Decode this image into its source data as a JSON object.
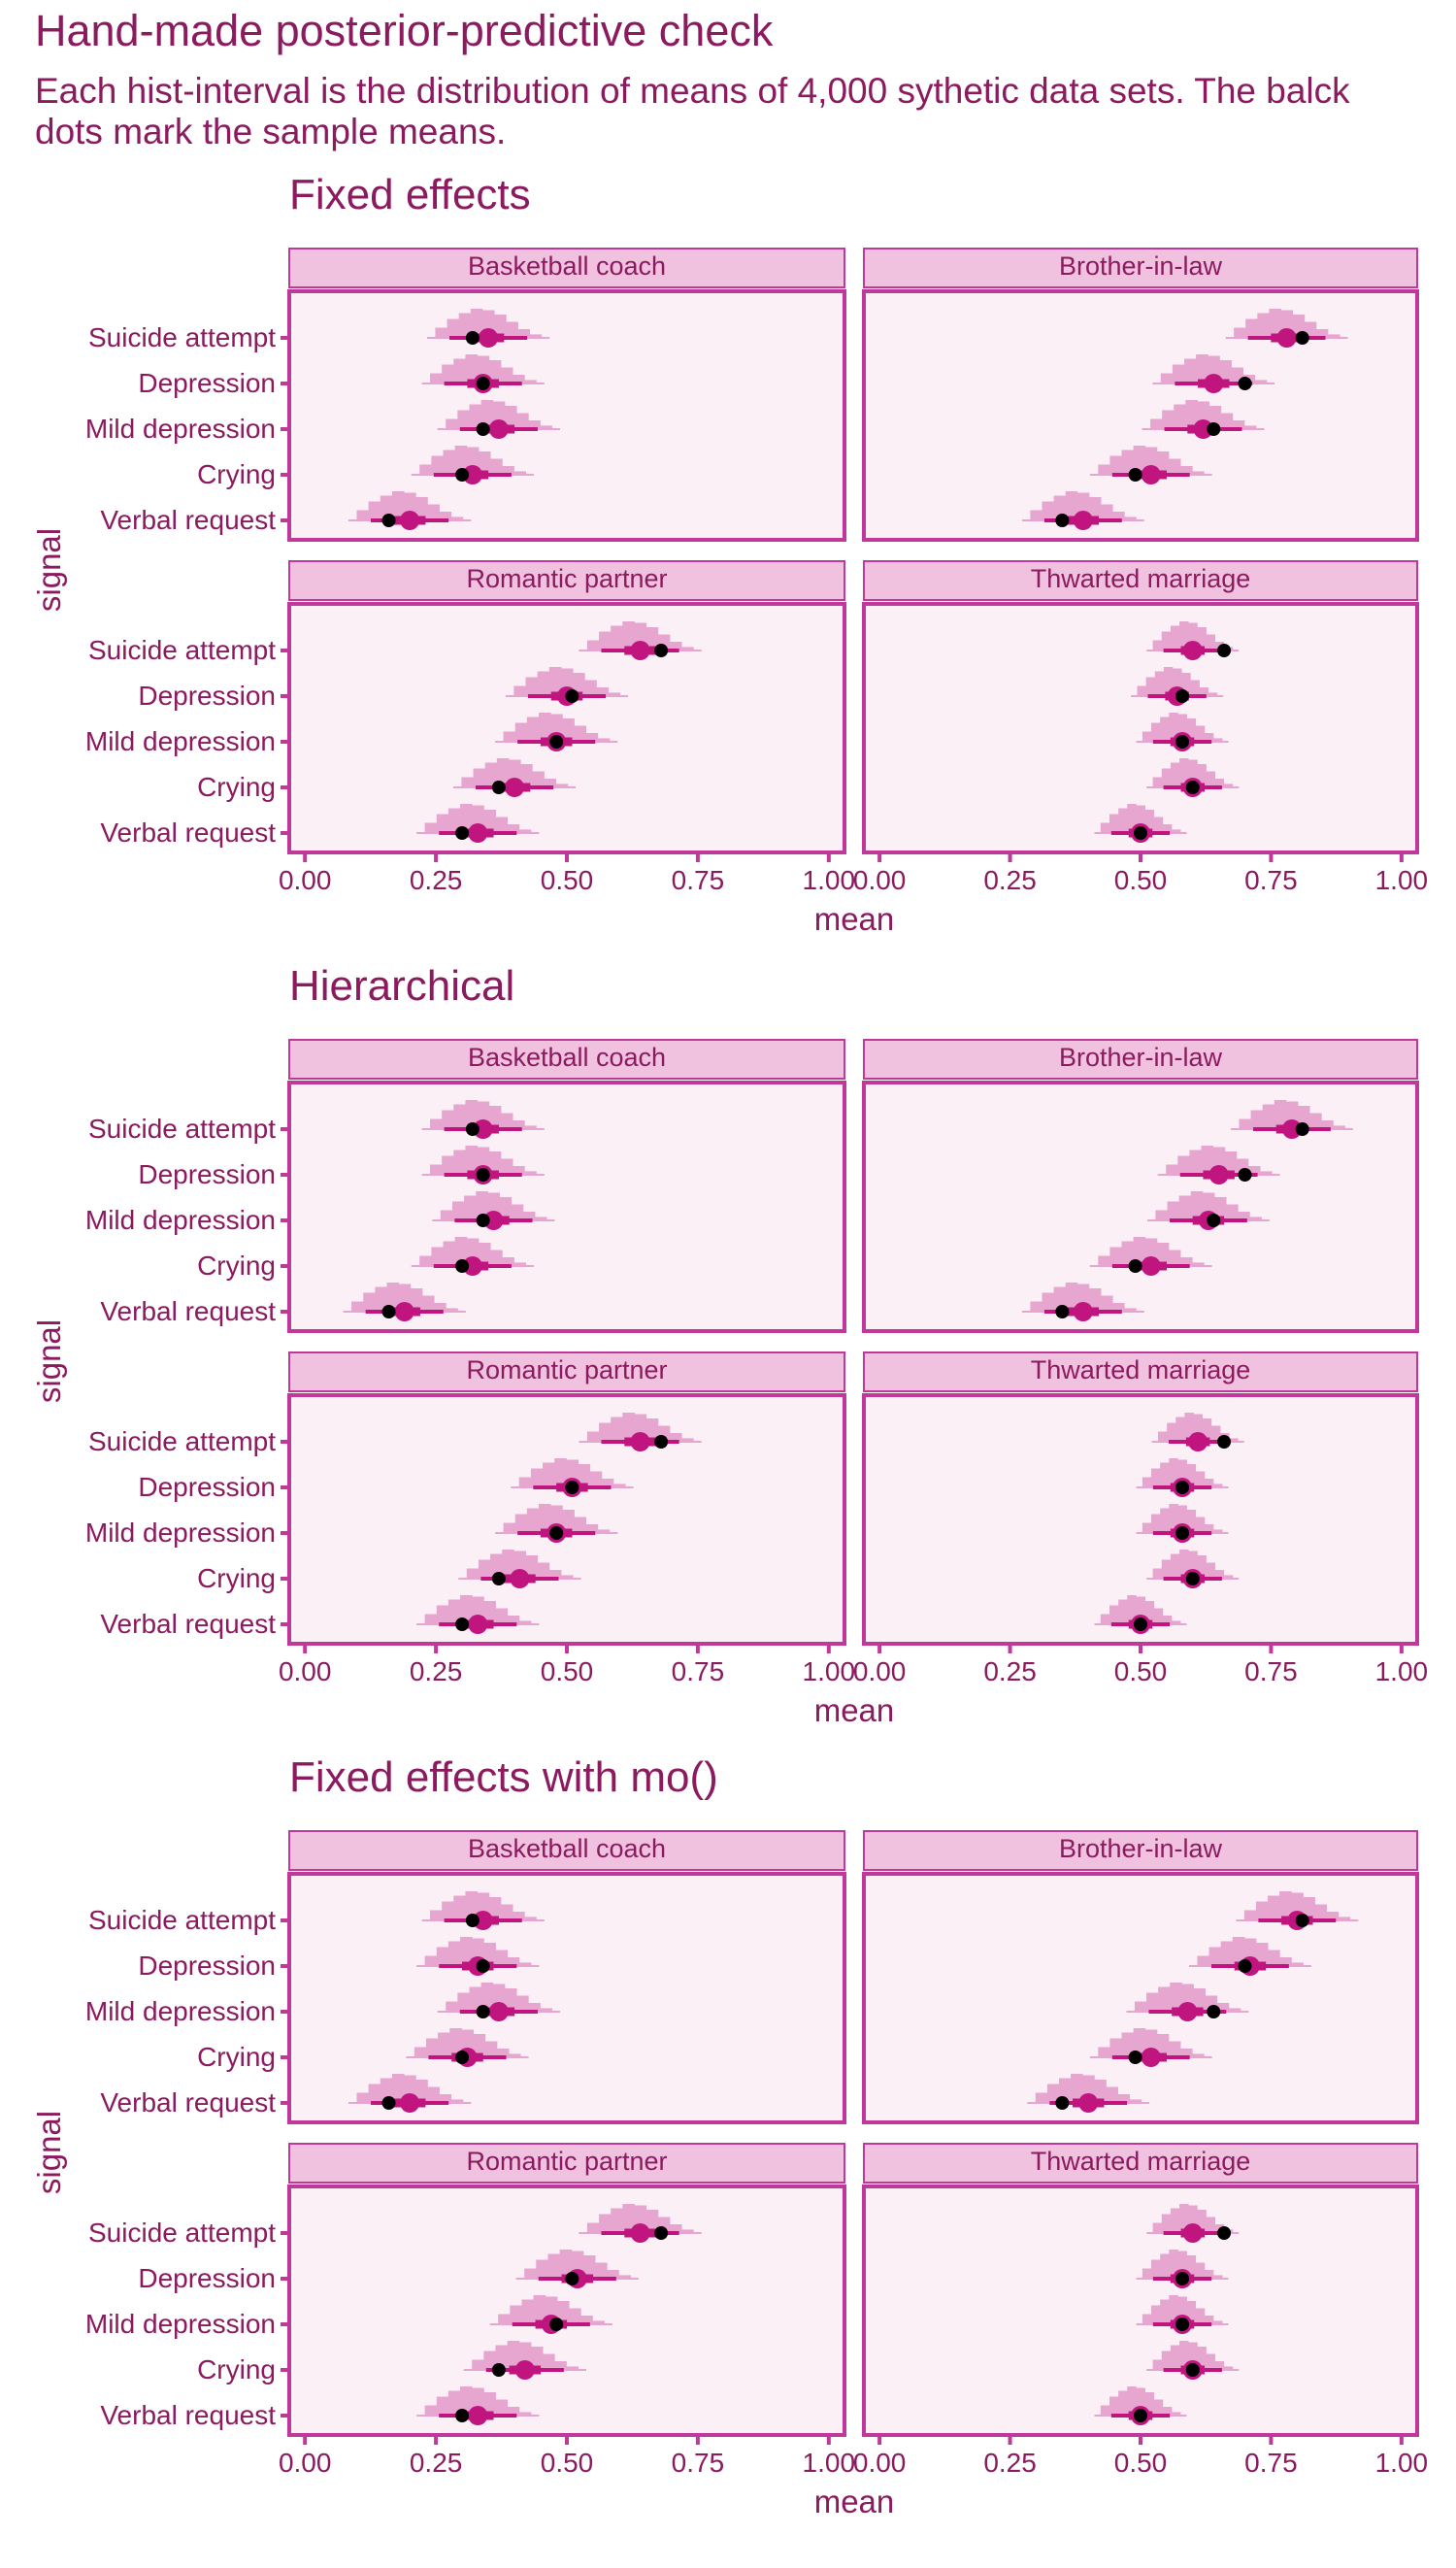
{
  "title": "Hand-made posterior-predictive check",
  "subtitle_line1": "Each hist-interval is the distribution of means of 4,000 sythetic data sets. The balck",
  "subtitle_line2": "dots mark the sample means.",
  "colors": {
    "text": "#8b1a5f",
    "panel_bg": "#fcf0f7",
    "panel_border": "#c0399a",
    "strip_bg": "#f0c2df",
    "hist": "#e6a6d0",
    "interval": "#c0157f",
    "dot_sample": "#000000"
  },
  "x_axis": {
    "label": "mean",
    "ticks": [
      0,
      0.25,
      0.5,
      0.75,
      1
    ],
    "tick_labels": [
      "0.00",
      "0.25",
      "0.50",
      "0.75",
      "1.00"
    ],
    "lim": [
      -0.03,
      1.03
    ]
  },
  "y_axis": {
    "label": "signal",
    "categories": [
      "Suicide attempt",
      "Depression",
      "Mild depression",
      "Crying",
      "Verbal request"
    ]
  },
  "chart_data": [
    {
      "type": "interval",
      "title": "Fixed effects",
      "xlabel": "mean",
      "ylabel": "signal",
      "facets": [
        {
          "name": "Basketball coach",
          "median": [
            0.35,
            0.34,
            0.37,
            0.32,
            0.2
          ],
          "observed": [
            0.32,
            0.34,
            0.34,
            0.3,
            0.16
          ]
        },
        {
          "name": "Brother-in-law",
          "median": [
            0.78,
            0.64,
            0.62,
            0.52,
            0.39
          ],
          "observed": [
            0.81,
            0.7,
            0.64,
            0.49,
            0.35
          ]
        },
        {
          "name": "Romantic partner",
          "median": [
            0.64,
            0.5,
            0.48,
            0.4,
            0.33
          ],
          "observed": [
            0.68,
            0.51,
            0.48,
            0.37,
            0.3
          ]
        },
        {
          "name": "Thwarted marriage",
          "median": [
            0.6,
            0.57,
            0.58,
            0.6,
            0.5
          ],
          "observed": [
            0.66,
            0.58,
            0.58,
            0.6,
            0.5
          ]
        }
      ]
    },
    {
      "type": "interval",
      "title": "Hierarchical",
      "xlabel": "mean",
      "ylabel": "signal",
      "facets": [
        {
          "name": "Basketball coach",
          "median": [
            0.34,
            0.34,
            0.36,
            0.32,
            0.19
          ],
          "observed": [
            0.32,
            0.34,
            0.34,
            0.3,
            0.16
          ]
        },
        {
          "name": "Brother-in-law",
          "median": [
            0.79,
            0.65,
            0.63,
            0.52,
            0.39
          ],
          "observed": [
            0.81,
            0.7,
            0.64,
            0.49,
            0.35
          ]
        },
        {
          "name": "Romantic partner",
          "median": [
            0.64,
            0.51,
            0.48,
            0.41,
            0.33
          ],
          "observed": [
            0.68,
            0.51,
            0.48,
            0.37,
            0.3
          ]
        },
        {
          "name": "Thwarted marriage",
          "median": [
            0.61,
            0.58,
            0.58,
            0.6,
            0.5
          ],
          "observed": [
            0.66,
            0.58,
            0.58,
            0.6,
            0.5
          ]
        }
      ]
    },
    {
      "type": "interval",
      "title": "Fixed effects with mo()",
      "xlabel": "mean",
      "ylabel": "signal",
      "facets": [
        {
          "name": "Basketball coach",
          "median": [
            0.34,
            0.33,
            0.37,
            0.31,
            0.2
          ],
          "observed": [
            0.32,
            0.34,
            0.34,
            0.3,
            0.16
          ]
        },
        {
          "name": "Brother-in-law",
          "median": [
            0.8,
            0.71,
            0.59,
            0.52,
            0.4
          ],
          "observed": [
            0.81,
            0.7,
            0.64,
            0.49,
            0.35
          ]
        },
        {
          "name": "Romantic partner",
          "median": [
            0.64,
            0.52,
            0.47,
            0.42,
            0.33
          ],
          "observed": [
            0.68,
            0.51,
            0.48,
            0.37,
            0.3
          ]
        },
        {
          "name": "Thwarted marriage",
          "median": [
            0.6,
            0.58,
            0.58,
            0.6,
            0.5
          ],
          "observed": [
            0.66,
            0.58,
            0.58,
            0.6,
            0.5
          ]
        }
      ]
    }
  ]
}
